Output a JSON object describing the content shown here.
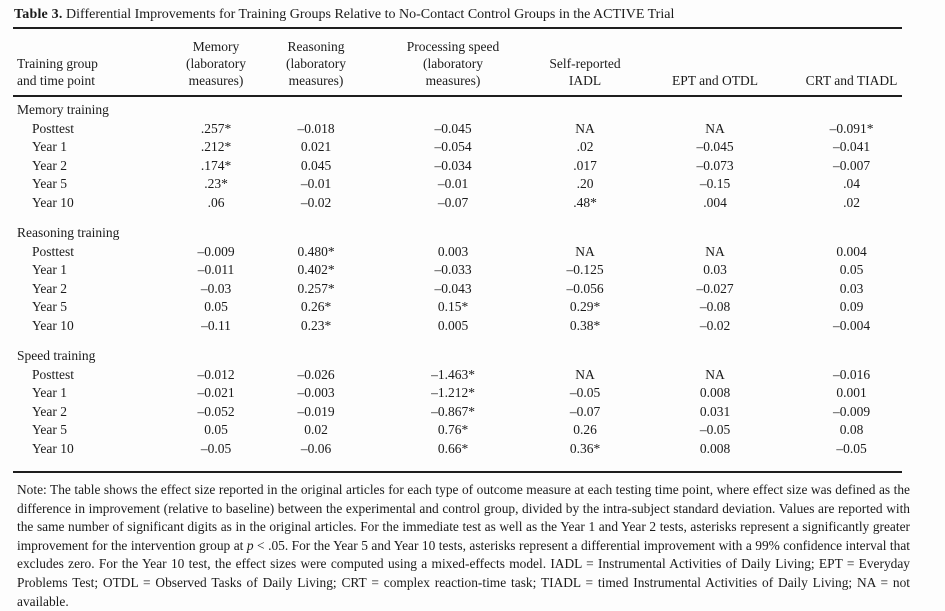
{
  "colors": {
    "text": "#1b1b1b",
    "background": "#fdfdfd",
    "rule": "#1e1e1e"
  },
  "title": {
    "label": "Table 3.",
    "caption": "Differential Improvements for Training Groups Relative to No-Contact Control Groups in the ACTIVE Trial"
  },
  "table": {
    "col_headers": [
      "Training group\nand time point",
      "Memory\n(laboratory\nmeasures)",
      "Reasoning\n(laboratory\nmeasures)",
      "Processing speed\n(laboratory\nmeasures)",
      "Self-reported\nIADL",
      "EPT and OTDL",
      "CRT and TIADL"
    ],
    "sections": [
      {
        "label": "Memory training",
        "rows": [
          {
            "label": "Posttest",
            "values": [
              ".257*",
              "–0.018",
              "–0.045",
              "NA",
              "NA",
              "–0.091*"
            ]
          },
          {
            "label": "Year 1",
            "values": [
              ".212*",
              "0.021",
              "–0.054",
              ".02",
              "–0.045",
              "–0.041"
            ]
          },
          {
            "label": "Year 2",
            "values": [
              ".174*",
              "0.045",
              "–0.034",
              ".017",
              "–0.073",
              "–0.007"
            ]
          },
          {
            "label": "Year 5",
            "values": [
              ".23*",
              "–0.01",
              "–0.01",
              ".20",
              "–0.15",
              ".04"
            ]
          },
          {
            "label": "Year 10",
            "values": [
              ".06",
              "–0.02",
              "–0.07",
              ".48*",
              ".004",
              ".02"
            ]
          }
        ]
      },
      {
        "label": "Reasoning training",
        "rows": [
          {
            "label": "Posttest",
            "values": [
              "–0.009",
              "0.480*",
              "0.003",
              "NA",
              "NA",
              "0.004"
            ]
          },
          {
            "label": "Year 1",
            "values": [
              "–0.011",
              "0.402*",
              "–0.033",
              "–0.125",
              "0.03",
              "0.05"
            ]
          },
          {
            "label": "Year 2",
            "values": [
              "–0.03",
              "0.257*",
              "–0.043",
              "–0.056",
              "–0.027",
              "0.03"
            ]
          },
          {
            "label": "Year 5",
            "values": [
              "0.05",
              "0.26*",
              "0.15*",
              "0.29*",
              "–0.08",
              "0.09"
            ]
          },
          {
            "label": "Year 10",
            "values": [
              "–0.11",
              "0.23*",
              "0.005",
              "0.38*",
              "–0.02",
              "–0.004"
            ]
          }
        ]
      },
      {
        "label": "Speed training",
        "rows": [
          {
            "label": "Posttest",
            "values": [
              "–0.012",
              "–0.026",
              "–1.463*",
              "NA",
              "NA",
              "–0.016"
            ]
          },
          {
            "label": "Year 1",
            "values": [
              "–0.021",
              "–0.003",
              "–1.212*",
              "–0.05",
              "0.008",
              "0.001"
            ]
          },
          {
            "label": "Year 2",
            "values": [
              "–0.052",
              "–0.019",
              "–0.867*",
              "–0.07",
              "0.031",
              "–0.009"
            ]
          },
          {
            "label": "Year 5",
            "values": [
              "0.05",
              "0.02",
              "0.76*",
              "0.26",
              "–0.05",
              "0.08"
            ]
          },
          {
            "label": "Year 10",
            "values": [
              "–0.05",
              "–0.06",
              "0.66*",
              "0.36*",
              "0.008",
              "–0.05"
            ]
          }
        ]
      }
    ]
  },
  "note": {
    "part1": "Note: The table shows the effect size reported in the original articles for each type of outcome measure at each testing time point, where effect size was defined as the difference in improvement (relative to baseline) between the experimental and control group, divided by the intra-subject standard deviation. Values are reported with the same number of significant digits as in the original articles. For the immediate test as well as the Year 1 and Year 2 tests, asterisks represent a significantly greater improvement for the intervention group at ",
    "italic_p": "p",
    "part2": " < .05. For the Year 5 and Year 10 tests, asterisks represent a differential improvement with a 99% confidence interval that excludes zero. For the Year 10 test, the effect sizes were computed using a mixed-effects model. IADL = Instrumental Activities of Daily Living; EPT = Everyday Problems Test; OTDL = Observed Tasks of Daily Living; CRT = complex reaction-time task; TIADL = timed Instrumental Activities of Daily Living; NA = not available."
  }
}
